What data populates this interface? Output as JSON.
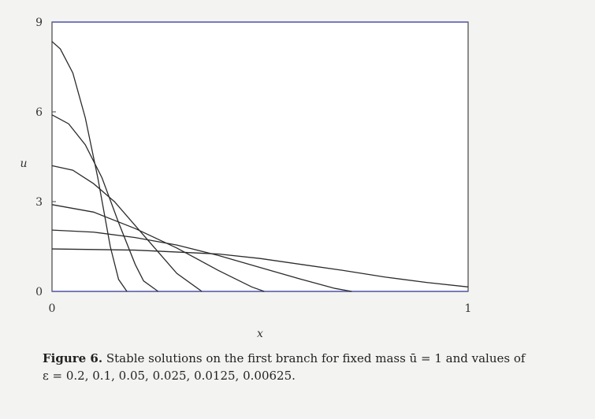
{
  "chart_data": {
    "type": "line",
    "title": "",
    "xlabel": "x",
    "ylabel": "u",
    "xlim": [
      0,
      1
    ],
    "ylim": [
      0,
      9
    ],
    "x_ticks": [
      "0",
      "1"
    ],
    "y_ticks": [
      "0",
      "3",
      "6",
      "9"
    ],
    "grid": false,
    "series": [
      {
        "x": [
          0,
          0.02,
          0.05,
          0.08,
          0.11,
          0.14,
          0.16,
          0.18
        ],
        "values": [
          8.35,
          8.1,
          7.3,
          5.8,
          3.8,
          1.5,
          0.4,
          0.0
        ]
      },
      {
        "x": [
          0,
          0.04,
          0.08,
          0.12,
          0.16,
          0.2,
          0.22,
          0.255
        ],
        "values": [
          5.9,
          5.6,
          4.9,
          3.8,
          2.3,
          0.9,
          0.35,
          0.0
        ]
      },
      {
        "x": [
          0,
          0.05,
          0.1,
          0.15,
          0.2,
          0.25,
          0.3,
          0.36
        ],
        "values": [
          4.2,
          4.05,
          3.6,
          3.0,
          2.2,
          1.4,
          0.6,
          0.0
        ]
      },
      {
        "x": [
          0,
          0.1,
          0.2,
          0.3,
          0.4,
          0.48,
          0.51
        ],
        "values": [
          2.9,
          2.65,
          2.1,
          1.45,
          0.7,
          0.15,
          0.0
        ]
      },
      {
        "x": [
          0,
          0.1,
          0.2,
          0.3,
          0.4,
          0.5,
          0.6,
          0.68,
          0.72
        ],
        "values": [
          2.05,
          1.98,
          1.8,
          1.55,
          1.2,
          0.8,
          0.4,
          0.1,
          0.0
        ]
      },
      {
        "x": [
          0,
          0.2,
          0.4,
          0.5,
          0.6,
          0.7,
          0.8,
          0.9,
          1.0
        ],
        "values": [
          1.42,
          1.38,
          1.25,
          1.1,
          0.9,
          0.7,
          0.48,
          0.3,
          0.15
        ]
      }
    ]
  },
  "caption": {
    "label": "Figure 6.",
    "text": "Stable solutions on the first branch for fixed mass ū = 1 and values of",
    "line2": "ε = 0.2, 0.1, 0.05, 0.025, 0.0125, 0.00625."
  }
}
